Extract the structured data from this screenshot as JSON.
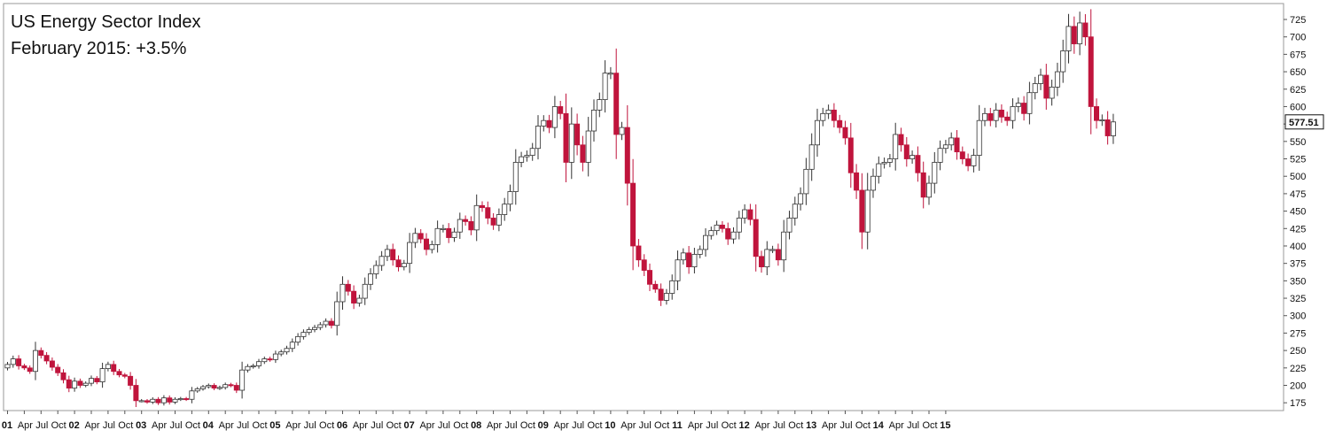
{
  "chart_data": {
    "type": "candlestick",
    "title": "US Energy Sector Index",
    "subtitle": "February 2015: +3.5%",
    "xlabel": "",
    "ylabel": "",
    "ylim": [
      150,
      740
    ],
    "y_ticks": [
      175,
      200,
      225,
      250,
      275,
      300,
      325,
      350,
      375,
      400,
      425,
      450,
      475,
      500,
      525,
      550,
      575,
      600,
      625,
      650,
      675,
      700,
      725
    ],
    "x_tick_labels": [
      {
        "label": "01",
        "year": true
      },
      {
        "label": "Apr"
      },
      {
        "label": "Jul"
      },
      {
        "label": "Oct"
      },
      {
        "label": "02",
        "year": true
      },
      {
        "label": "Apr"
      },
      {
        "label": "Jul"
      },
      {
        "label": "Oct"
      },
      {
        "label": "03",
        "year": true
      },
      {
        "label": "Apr"
      },
      {
        "label": "Jul"
      },
      {
        "label": "Oct"
      },
      {
        "label": "04",
        "year": true
      },
      {
        "label": "Apr"
      },
      {
        "label": "Jul"
      },
      {
        "label": "Oct"
      },
      {
        "label": "05",
        "year": true
      },
      {
        "label": "Apr"
      },
      {
        "label": "Jul"
      },
      {
        "label": "Oct"
      },
      {
        "label": "06",
        "year": true
      },
      {
        "label": "Apr"
      },
      {
        "label": "Jul"
      },
      {
        "label": "Oct"
      },
      {
        "label": "07",
        "year": true
      },
      {
        "label": "Apr"
      },
      {
        "label": "Jul"
      },
      {
        "label": "Oct"
      },
      {
        "label": "08",
        "year": true
      },
      {
        "label": "Apr"
      },
      {
        "label": "Jul"
      },
      {
        "label": "Oct"
      },
      {
        "label": "09",
        "year": true
      },
      {
        "label": "Apr"
      },
      {
        "label": "Jul"
      },
      {
        "label": "Oct"
      },
      {
        "label": "10",
        "year": true
      },
      {
        "label": "Apr"
      },
      {
        "label": "Jul"
      },
      {
        "label": "Oct"
      },
      {
        "label": "11",
        "year": true
      },
      {
        "label": "Apr"
      },
      {
        "label": "Jul"
      },
      {
        "label": "Oct"
      },
      {
        "label": "12",
        "year": true
      },
      {
        "label": "Apr"
      },
      {
        "label": "Jul"
      },
      {
        "label": "Oct"
      },
      {
        "label": "13",
        "year": true
      },
      {
        "label": "Apr"
      },
      {
        "label": "Jul"
      },
      {
        "label": "Oct"
      },
      {
        "label": "14",
        "year": true
      },
      {
        "label": "Apr"
      },
      {
        "label": "Jul"
      },
      {
        "label": "Oct"
      },
      {
        "label": "15",
        "year": true
      }
    ],
    "last_value_label": "577.51",
    "grid": false,
    "y_axis_position": "right",
    "colors": {
      "up_fill": "#ffffff",
      "down_fill": "#c0143c",
      "wick": "#333333",
      "border": "#9a9a9a"
    },
    "monthly_close": [
      230,
      238,
      228,
      225,
      220,
      250,
      243,
      235,
      226,
      218,
      208,
      196,
      206,
      200,
      203,
      210,
      205,
      224,
      230,
      220,
      215,
      213,
      200,
      178,
      178,
      176,
      180,
      175,
      182,
      176,
      180,
      181,
      180,
      192,
      195,
      198,
      200,
      196,
      197,
      201,
      200,
      193,
      222,
      227,
      228,
      234,
      238,
      237,
      245,
      248,
      253,
      262,
      270,
      276,
      280,
      283,
      287,
      292,
      286,
      320,
      345,
      335,
      318,
      325,
      345,
      360,
      372,
      385,
      395,
      380,
      370,
      375,
      405,
      418,
      410,
      395,
      402,
      425,
      425,
      412,
      420,
      438,
      435,
      423,
      458,
      455,
      440,
      430,
      445,
      460,
      478,
      520,
      528,
      530,
      540,
      572,
      580,
      570,
      600,
      590,
      520,
      575,
      545,
      520,
      565,
      595,
      610,
      648,
      648,
      560,
      570,
      490,
      400,
      380,
      365,
      345,
      338,
      322,
      332,
      350,
      380,
      390,
      370,
      388,
      395,
      415,
      422,
      430,
      425,
      410,
      420,
      440,
      452,
      438,
      385,
      370,
      395,
      395,
      380,
      420,
      440,
      460,
      475,
      510,
      545,
      580,
      590,
      595,
      580,
      570,
      555,
      505,
      480,
      420,
      480,
      500,
      518,
      520,
      525,
      560,
      545,
      525,
      530,
      505,
      470,
      490,
      520,
      540,
      545,
      555,
      535,
      525,
      515,
      530,
      580,
      590,
      580,
      595,
      585,
      580,
      600,
      605,
      590,
      620,
      633,
      645,
      612,
      628,
      650,
      680,
      715,
      690,
      720,
      700,
      600,
      580,
      581,
      558,
      578
    ]
  }
}
